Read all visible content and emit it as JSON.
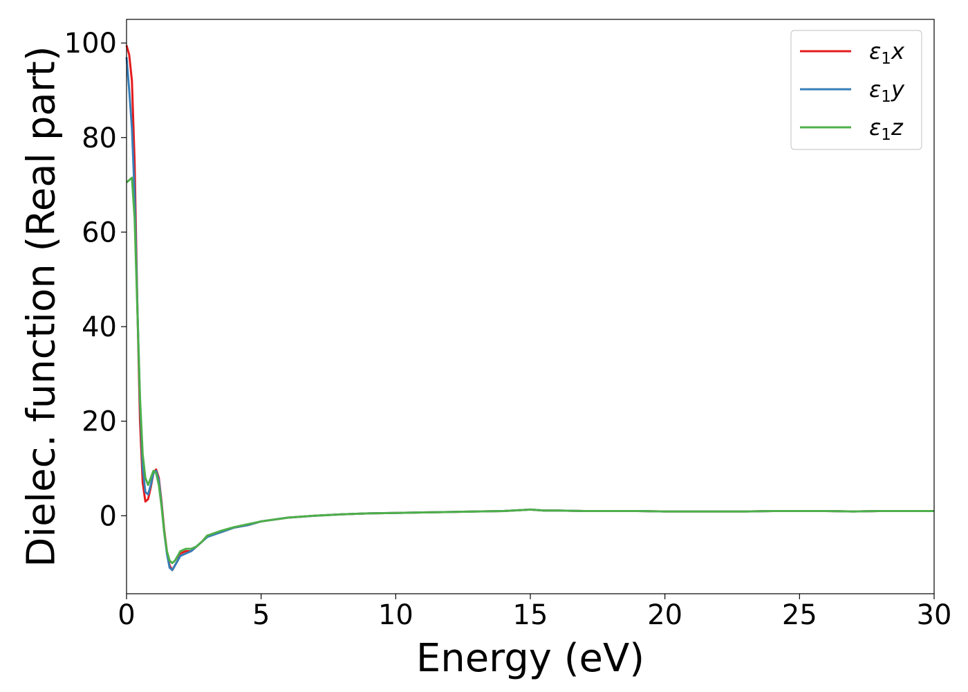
{
  "chart_data": {
    "type": "line",
    "title": "",
    "xlabel": "Energy (eV)",
    "ylabel": "Dielec. function (Real part)",
    "xlim": [
      0,
      30
    ],
    "ylim": [
      -16.5,
      105
    ],
    "xticks": [
      0,
      5,
      10,
      15,
      20,
      25,
      30
    ],
    "yticks": [
      0,
      20,
      40,
      60,
      80,
      100
    ],
    "grid": false,
    "legend": "top-right",
    "series": [
      {
        "name": "ε₁x",
        "legend_main": "ε",
        "legend_sub": "1",
        "legend_suffix": "x",
        "color": "#e41a1c",
        "x": [
          0,
          0.1,
          0.2,
          0.3,
          0.4,
          0.5,
          0.6,
          0.7,
          0.8,
          0.9,
          1.0,
          1.1,
          1.2,
          1.3,
          1.4,
          1.5,
          1.6,
          1.7,
          1.8,
          1.9,
          2.0,
          2.2,
          2.4,
          2.6,
          2.8,
          3.0,
          3.5,
          4.0,
          4.5,
          5.0,
          6.0,
          7.0,
          8.0,
          9.0,
          10.0,
          11.0,
          12.0,
          13.0,
          14.0,
          15.0,
          15.5,
          16.0,
          17.0,
          18.0,
          19.0,
          20.0,
          21.0,
          22.0,
          23.0,
          24.0,
          25.0,
          26.0,
          27.0,
          28.0,
          29.0,
          30.0
        ],
        "y": [
          99.5,
          97.5,
          92,
          75,
          45,
          20,
          7,
          3,
          3.5,
          6,
          9,
          9.8,
          8,
          3,
          -3,
          -7.5,
          -10.5,
          -11.5,
          -10.5,
          -9.5,
          -8,
          -7.5,
          -7.5,
          -6.5,
          -5.5,
          -4.2,
          -3.5,
          -2.5,
          -2,
          -1.2,
          -0.4,
          0,
          0.3,
          0.5,
          0.6,
          0.7,
          0.8,
          0.9,
          1.0,
          1.3,
          1.1,
          1.1,
          1.0,
          1.0,
          1.0,
          0.9,
          0.9,
          0.9,
          0.9,
          1.0,
          1.0,
          1.0,
          0.9,
          1.0,
          1.0,
          1.0
        ]
      },
      {
        "name": "ε₁y",
        "legend_main": "ε",
        "legend_sub": "1",
        "legend_suffix": "y",
        "color": "#377eb8",
        "x": [
          0,
          0.1,
          0.2,
          0.3,
          0.4,
          0.5,
          0.6,
          0.7,
          0.8,
          0.9,
          1.0,
          1.1,
          1.2,
          1.3,
          1.4,
          1.5,
          1.6,
          1.7,
          1.8,
          1.9,
          2.0,
          2.2,
          2.4,
          2.6,
          2.8,
          3.0,
          3.5,
          4.0,
          4.5,
          5.0,
          6.0,
          7.0,
          8.0,
          9.0,
          10.0,
          11.0,
          12.0,
          13.0,
          14.0,
          15.0,
          15.5,
          16.0,
          17.0,
          18.0,
          19.0,
          20.0,
          21.0,
          22.0,
          23.0,
          24.0,
          25.0,
          26.0,
          27.0,
          28.0,
          29.0,
          30.0
        ],
        "y": [
          97,
          90,
          82,
          68,
          45,
          24,
          10,
          5,
          4.5,
          6.5,
          9,
          9.5,
          7.5,
          2.5,
          -3.5,
          -8,
          -11,
          -11.5,
          -10.5,
          -9.5,
          -8.5,
          -8,
          -7.5,
          -6.5,
          -5.5,
          -4.5,
          -3.5,
          -2.5,
          -2,
          -1.2,
          -0.4,
          0,
          0.3,
          0.5,
          0.6,
          0.7,
          0.8,
          0.9,
          1.0,
          1.3,
          1.1,
          1.1,
          1.0,
          1.0,
          1.0,
          0.9,
          0.9,
          0.9,
          0.9,
          1.0,
          1.0,
          1.0,
          0.9,
          1.0,
          1.0,
          1.0
        ]
      },
      {
        "name": "ε₁z",
        "legend_main": "ε",
        "legend_sub": "1",
        "legend_suffix": "z",
        "color": "#4daf4a",
        "x": [
          0,
          0.1,
          0.2,
          0.3,
          0.4,
          0.5,
          0.6,
          0.7,
          0.8,
          0.9,
          1.0,
          1.1,
          1.2,
          1.3,
          1.4,
          1.5,
          1.6,
          1.7,
          1.8,
          1.9,
          2.0,
          2.2,
          2.4,
          2.6,
          2.8,
          3.0,
          3.5,
          4.0,
          4.5,
          5.0,
          6.0,
          7.0,
          8.0,
          9.0,
          10.0,
          11.0,
          12.0,
          13.0,
          14.0,
          15.0,
          15.5,
          16.0,
          17.0,
          18.0,
          19.0,
          20.0,
          21.0,
          22.0,
          23.0,
          24.0,
          25.0,
          26.0,
          27.0,
          28.0,
          29.0,
          30.0
        ],
        "y": [
          70.5,
          71,
          71.5,
          63,
          44,
          25,
          13,
          8,
          6.5,
          8,
          9.5,
          9,
          6.5,
          2,
          -3.5,
          -7.5,
          -9.5,
          -10,
          -9.5,
          -8.5,
          -7.5,
          -7,
          -7,
          -6.5,
          -5.5,
          -4.2,
          -3.2,
          -2.4,
          -1.8,
          -1.2,
          -0.4,
          0,
          0.3,
          0.5,
          0.6,
          0.7,
          0.8,
          0.9,
          1.0,
          1.3,
          1.1,
          1.1,
          1.0,
          1.0,
          1.0,
          0.9,
          0.9,
          0.9,
          0.9,
          1.0,
          1.0,
          1.0,
          0.9,
          1.0,
          1.0,
          1.0
        ]
      }
    ]
  }
}
